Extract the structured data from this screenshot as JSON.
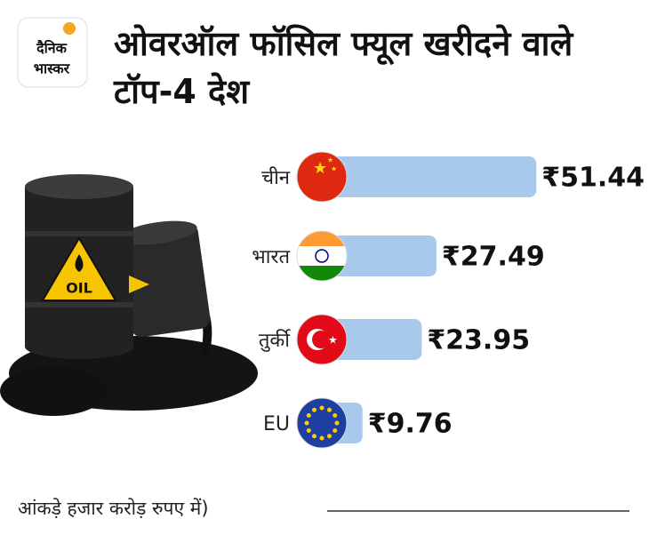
{
  "logo_text": [
    "दैनिक",
    "भास्कर"
  ],
  "chart_data": {
    "type": "bar",
    "orientation": "horizontal",
    "title": "ओवरऑल फॉसिल फ्यूल खरीदने वाले टॉप-4 देश",
    "categories": [
      "चीन",
      "भारत",
      "तुर्की",
      "EU"
    ],
    "values": [
      51.44,
      27.49,
      23.95,
      9.76
    ],
    "value_labels": [
      "₹51.44",
      "₹27.49",
      "₹23.95",
      "₹9.76"
    ],
    "color": "#a9c9ec",
    "note": "आंकड़े हजार करोड़ रुपए में)"
  }
}
